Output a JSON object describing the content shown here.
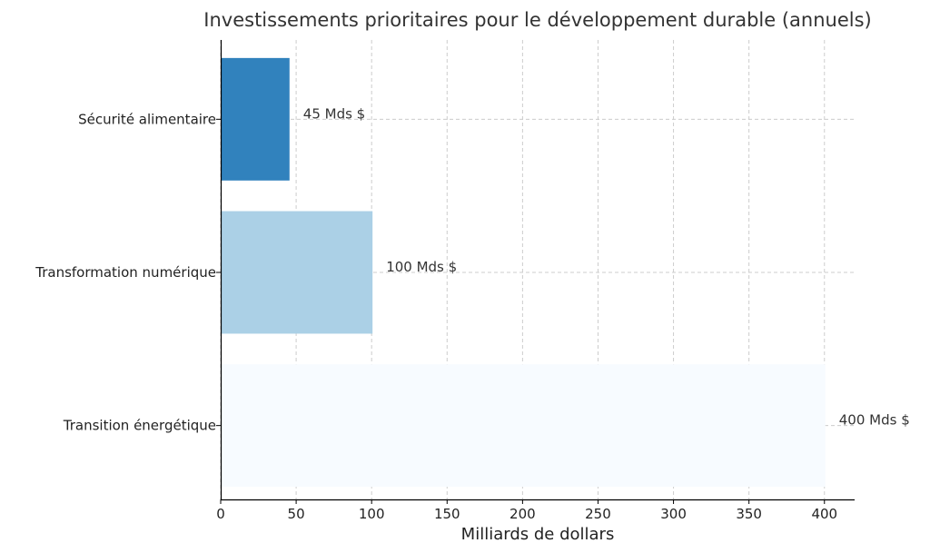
{
  "chart_data": {
    "type": "bar",
    "orientation": "horizontal",
    "title": "Investissements prioritaires pour le développement durable (annuels)",
    "xlabel": "Milliards de dollars",
    "ylabel": "",
    "categories": [
      "Sécurité alimentaire",
      "Transformation numérique",
      "Transition énergétique"
    ],
    "values": [
      45,
      100,
      400
    ],
    "data_labels": [
      "45 Mds $",
      "100 Mds $",
      "400 Mds $"
    ],
    "colors": [
      "#3182bd",
      "#abd0e6",
      "#f7fbff"
    ],
    "xlim": [
      0,
      420
    ],
    "xticks": [
      0,
      50,
      100,
      150,
      200,
      250,
      300,
      350,
      400
    ],
    "grid": true
  }
}
